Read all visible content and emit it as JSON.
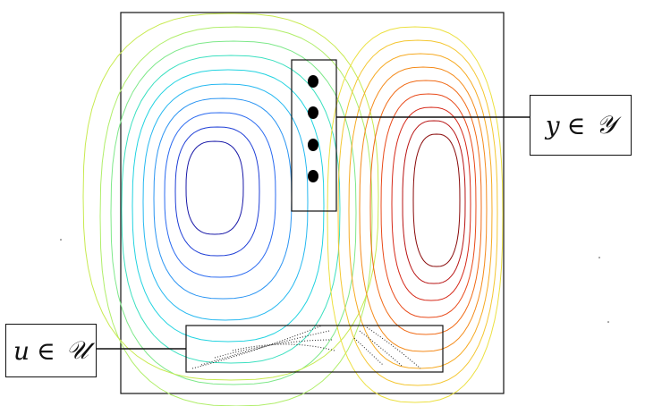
{
  "labels": {
    "y": {
      "var": "y",
      "rel": "∈",
      "set": "𝒴"
    },
    "u": {
      "var": "u",
      "rel": "∈",
      "set": "𝒰"
    }
  },
  "figure": {
    "left_vortex": {
      "palette": [
        "#1a1aa8",
        "#1f3fd6",
        "#2a6af0",
        "#2c95f2",
        "#26b8f0",
        "#22d3e0",
        "#3ce0c0",
        "#7ee88a",
        "#b0ee6a"
      ]
    },
    "right_vortex": {
      "palette": [
        "#8a0b0b",
        "#b81414",
        "#d62a1a",
        "#e84a1a",
        "#f06a16",
        "#f48a1a",
        "#f6aa22",
        "#f4c630",
        "#ece040"
      ]
    },
    "sensors": {
      "count": 4
    }
  }
}
